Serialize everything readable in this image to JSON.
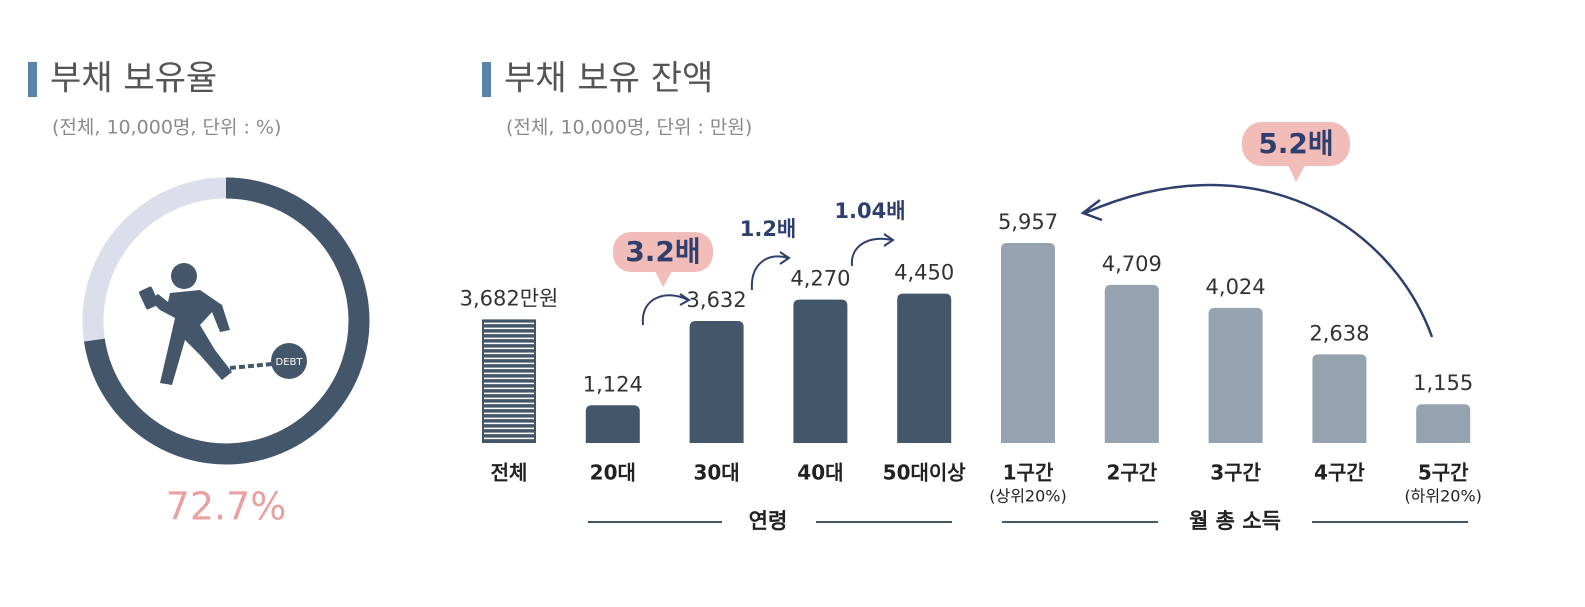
{
  "chart_data": [
    {
      "type": "donut",
      "title": "부채 보유율",
      "subtitle": "(전체, 10,000명, 단위 : %)",
      "value": 72.7,
      "value_label": "72.7%",
      "color": "#44576a",
      "track_color": "#dcdfeb",
      "icon_label": "DEBT"
    },
    {
      "type": "bar",
      "title": "부채 보유 잔액",
      "subtitle": "(전체, 10,000명, 단위 : 만원)",
      "categories": [
        "전체",
        "20대",
        "30대",
        "40대",
        "50대이상",
        "1구간",
        "2구간",
        "3구간",
        "4구간",
        "5구간"
      ],
      "sublabels": [
        null,
        null,
        null,
        null,
        null,
        "(상위20%)",
        null,
        null,
        null,
        "(하위20%)"
      ],
      "values": [
        3682,
        1124,
        3632,
        4270,
        4450,
        5957,
        4709,
        4024,
        2638,
        1155
      ],
      "value_labels": [
        "3,682만원",
        "1,124",
        "3,632",
        "4,270",
        "4,450",
        "5,957",
        "4,709",
        "4,024",
        "2,638",
        "1,155"
      ],
      "colors": [
        "#44576a",
        "#44576a",
        "#44576a",
        "#44576a",
        "#44576a",
        "#95a2af",
        "#95a2af",
        "#95a2af",
        "#95a2af",
        "#95a2af"
      ],
      "groups": [
        {
          "label": "연령"
        },
        {
          "label": "월 총 소득"
        }
      ],
      "annotations": [
        "3.2배",
        "1.2배",
        "1.04배",
        "5.2배"
      ]
    }
  ]
}
